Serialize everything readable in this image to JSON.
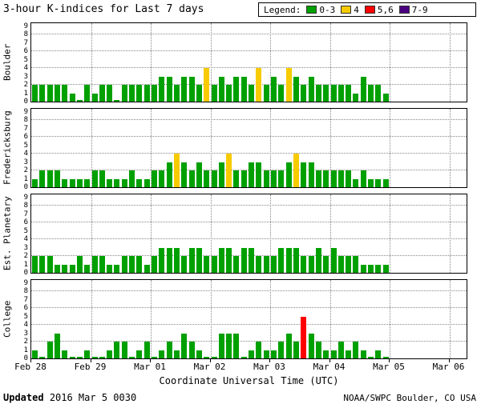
{
  "legend": {
    "label": "Legend:",
    "items": [
      {
        "label": "0-3",
        "color": "#00A000"
      },
      {
        "label": "4",
        "color": "#F7CB00"
      },
      {
        "label": "5,6",
        "color": "#FF0000"
      },
      {
        "label": "7-9",
        "color": "#4B0082"
      }
    ]
  },
  "footer": {
    "updated_label": "Updated",
    "updated_value": "2016 Mar 5 0030",
    "credit": "NOAA/SWPC Boulder, CO USA"
  },
  "chart_data": {
    "type": "bar",
    "title": "3-hour K-indices for Last 7 days",
    "xlabel": "Coordinate Universal Time (UTC)",
    "x_ticks": [
      "Feb 28",
      "Feb 29",
      "Mar 01",
      "Mar 02",
      "Mar 03",
      "Mar 04",
      "Mar 05",
      "Mar 06"
    ],
    "y_ticks": [
      0,
      1,
      2,
      3,
      4,
      5,
      6,
      7,
      8,
      9
    ],
    "ylim": [
      0,
      9
    ],
    "bars_per_day": 8,
    "bar_interval_hours": 3,
    "legend_position": "top-right",
    "gridlines": {
      "y_values": [
        2,
        4,
        6,
        8
      ],
      "x_at_day_boundaries": true
    },
    "colors": {
      "green": "#00A000",
      "yellow": "#F7CB00",
      "red": "#FF0000",
      "purple": "#4B0082"
    },
    "color_rule": "K 0-3 green, K 4 yellow, K 5-6 red, K 7-9 purple",
    "series": [
      {
        "name": "Boulder",
        "values": [
          2,
          2,
          2,
          2,
          2,
          1,
          0,
          2,
          1,
          2,
          2,
          0,
          2,
          2,
          2,
          2,
          2,
          3,
          3,
          2,
          3,
          3,
          2,
          4,
          2,
          3,
          2,
          3,
          3,
          2,
          4,
          2,
          3,
          2,
          4,
          3,
          2,
          3,
          2,
          2,
          2,
          2,
          2,
          1,
          3,
          2,
          2,
          1
        ]
      },
      {
        "name": "Fredericksburg",
        "values": [
          1,
          2,
          2,
          2,
          1,
          1,
          1,
          1,
          2,
          2,
          1,
          1,
          1,
          2,
          1,
          1,
          2,
          2,
          3,
          4,
          3,
          2,
          3,
          2,
          2,
          3,
          4,
          2,
          2,
          3,
          3,
          2,
          2,
          2,
          3,
          4,
          3,
          3,
          2,
          2,
          2,
          2,
          2,
          1,
          2,
          1,
          1,
          1
        ]
      },
      {
        "name": "Est. Planetary",
        "values": [
          2,
          2,
          2,
          1,
          1,
          1,
          2,
          1,
          2,
          2,
          1,
          1,
          2,
          2,
          2,
          1,
          2,
          3,
          3,
          3,
          2,
          3,
          3,
          2,
          2,
          3,
          3,
          2,
          3,
          3,
          2,
          2,
          2,
          3,
          3,
          3,
          2,
          2,
          3,
          2,
          3,
          2,
          2,
          2,
          1,
          1,
          1,
          1
        ]
      },
      {
        "name": "College",
        "values": [
          1,
          0,
          2,
          3,
          1,
          0,
          0,
          1,
          0,
          0,
          1,
          2,
          2,
          0,
          1,
          2,
          0,
          1,
          2,
          1,
          3,
          2,
          1,
          0,
          0,
          3,
          3,
          3,
          0,
          1,
          2,
          1,
          1,
          2,
          3,
          2,
          5,
          3,
          2,
          1,
          1,
          2,
          1,
          2,
          1,
          0,
          1,
          0
        ]
      }
    ]
  }
}
